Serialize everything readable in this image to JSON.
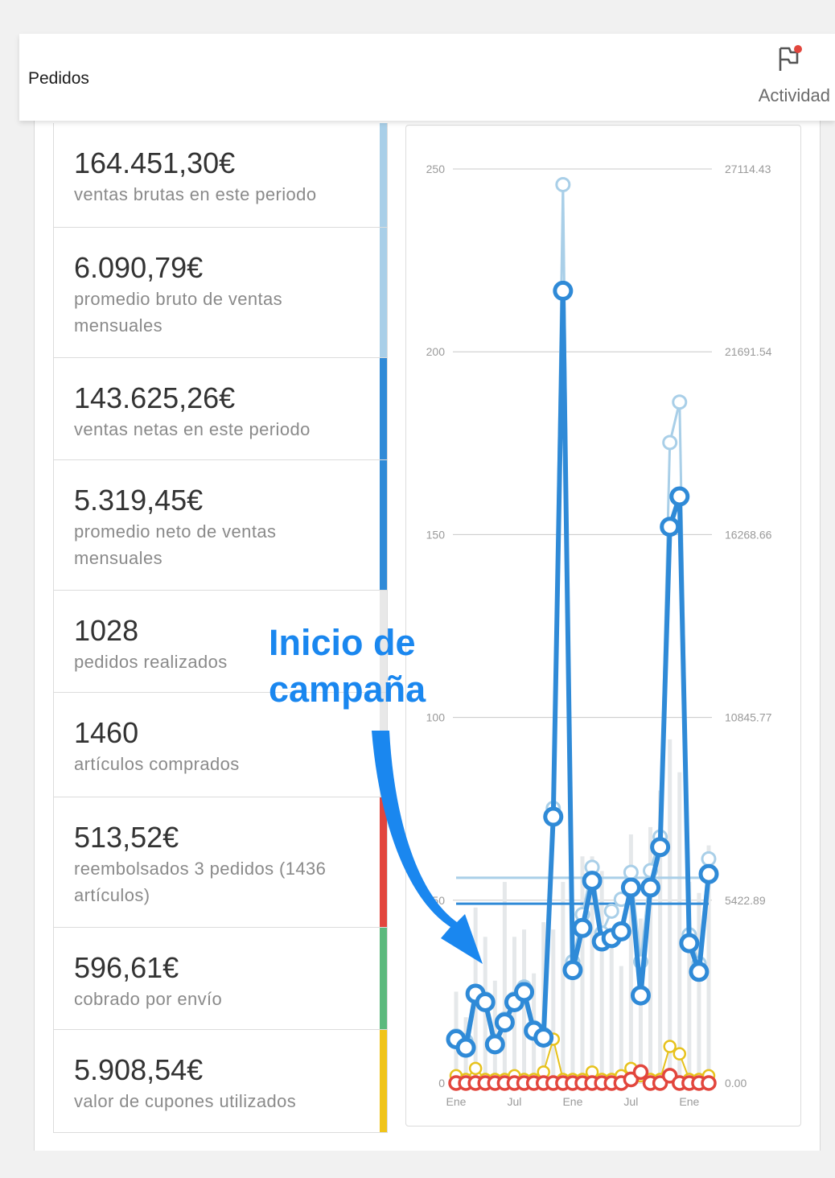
{
  "header": {
    "title": "Pedidos",
    "activity_label": "Actividad"
  },
  "stats": [
    {
      "value": "164.451,30€",
      "label": "ventas brutas en este periodo",
      "color": "#a9cfe8"
    },
    {
      "value": "6.090,79€",
      "label": "promedio bruto de ventas mensuales",
      "color": "#a9cfe8"
    },
    {
      "value": "143.625,26€",
      "label": "ventas netas en este periodo",
      "color": "#2f8ad7"
    },
    {
      "value": "5.319,45€",
      "label": "promedio neto de ventas mensuales",
      "color": "#2f8ad7"
    },
    {
      "value": "1028",
      "label": "pedidos realizados",
      "color": "#e8e8e8"
    },
    {
      "value": "1460",
      "label": "artículos comprados",
      "color": "#e8e8e8"
    },
    {
      "value": "513,52€",
      "label": "reembolsados 3 pedidos (1436 artículos)",
      "color": "#e2463d"
    },
    {
      "value": "596,61€",
      "label": "cobrado por envío",
      "color": "#5cb97d"
    },
    {
      "value": "5.908,54€",
      "label": "valor de cupones utilizados",
      "color": "#f0c419"
    }
  ],
  "annotation": {
    "line1": "Inicio de",
    "line2": "campaña"
  },
  "chart_data": {
    "type": "line",
    "left_axis": {
      "ticks": [
        "0",
        "50",
        "100",
        "150",
        "200",
        "250"
      ],
      "ylim": [
        0,
        250
      ]
    },
    "right_axis": {
      "ticks": [
        "0.00",
        "5422.89",
        "10845.77",
        "16268.66",
        "21691.54",
        "27114.43"
      ],
      "ylim": [
        0,
        27114.43
      ]
    },
    "x_tick_labels": [
      {
        "label": "Ene",
        "index": 0
      },
      {
        "label": "Jul",
        "index": 6
      },
      {
        "label": "Ene",
        "index": 12
      },
      {
        "label": "Jul",
        "index": 18
      },
      {
        "label": "Ene",
        "index": 24
      }
    ],
    "gross_sales": [
      1400,
      1250,
      2700,
      2500,
      1250,
      1900,
      2500,
      2850,
      1650,
      1450,
      8150,
      26650,
      3600,
      5000,
      6400,
      4450,
      5100,
      5450,
      6250,
      3600,
      6300,
      7300,
      19000,
      20200,
      4400,
      3550,
      6650
    ],
    "net_sales": [
      1300,
      1050,
      2650,
      2400,
      1150,
      1800,
      2400,
      2700,
      1550,
      1350,
      7900,
      23500,
      3350,
      4600,
      6000,
      4200,
      4300,
      4500,
      5800,
      2600,
      5800,
      7000,
      16500,
      17400,
      4150,
      3300,
      6200
    ],
    "orders": [
      2,
      1,
      4,
      1,
      1,
      1,
      2,
      1,
      1,
      3,
      12,
      1,
      1,
      1,
      3,
      1,
      1,
      2,
      4,
      2,
      1,
      1,
      10,
      8,
      1,
      1,
      2
    ],
    "refunds": [
      0,
      0,
      0,
      0,
      0,
      0,
      0,
      0,
      0,
      0,
      0,
      0,
      0,
      0,
      0,
      0,
      0,
      0,
      1,
      3,
      0,
      0,
      2,
      0,
      0,
      0,
      0
    ],
    "items_bars": [
      25,
      18,
      48,
      40,
      28,
      55,
      40,
      42,
      30,
      44,
      42,
      55,
      48,
      62,
      62,
      58,
      42,
      32,
      68,
      45,
      70,
      80,
      94,
      85,
      55,
      52,
      65
    ],
    "gross_avg_line": 6090.79,
    "net_avg_line": 5319.45,
    "colors": {
      "gross": "#a9cfe8",
      "net": "#2f8ad7",
      "orders": "#e7c21c",
      "refunds": "#e2463d",
      "bars": "#e5e8ea",
      "grid": "#c8c8c8"
    }
  }
}
